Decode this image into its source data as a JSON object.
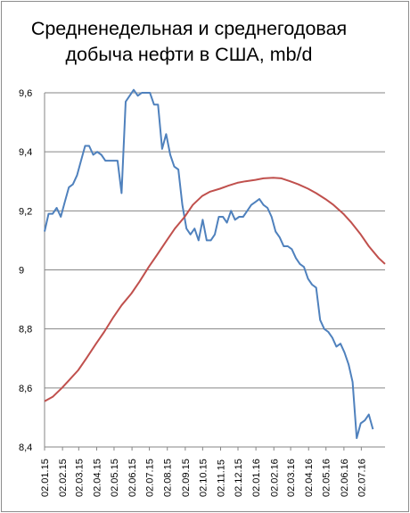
{
  "chart_data": {
    "type": "line",
    "title_lines": [
      "Средненедельная и среднегодовая",
      "добыча нефти в США, mb/d"
    ],
    "ylim": [
      8.4,
      9.6
    ],
    "y_ticks": [
      "8,4",
      "8,6",
      "8,8",
      "9",
      "9,2",
      "9,4",
      "9,6"
    ],
    "x_range": [
      "2015-01-02",
      "2016-08-12"
    ],
    "x_ticks": [
      "02.01.15",
      "02.02.15",
      "02.03.15",
      "02.04.15",
      "02.05.15",
      "02.06.15",
      "02.07.15",
      "02.08.15",
      "02.09.15",
      "02.10.15",
      "02.11.15",
      "02.12.15",
      "02.01.16",
      "02.02.16",
      "02.03.16",
      "02.04.16",
      "02.05.16",
      "02.06.16",
      "02.07.16"
    ],
    "grid": "horizontal",
    "legend": "none",
    "series": [
      {
        "color": "#4f81bd",
        "points": [
          [
            "2015-01-02",
            9.13
          ],
          [
            "2015-01-09",
            9.19
          ],
          [
            "2015-01-16",
            9.19
          ],
          [
            "2015-01-23",
            9.21
          ],
          [
            "2015-01-30",
            9.18
          ],
          [
            "2015-02-06",
            9.23
          ],
          [
            "2015-02-13",
            9.28
          ],
          [
            "2015-02-20",
            9.29
          ],
          [
            "2015-02-27",
            9.32
          ],
          [
            "2015-03-06",
            9.37
          ],
          [
            "2015-03-13",
            9.42
          ],
          [
            "2015-03-20",
            9.42
          ],
          [
            "2015-03-27",
            9.39
          ],
          [
            "2015-04-03",
            9.4
          ],
          [
            "2015-04-10",
            9.39
          ],
          [
            "2015-04-17",
            9.37
          ],
          [
            "2015-04-24",
            9.37
          ],
          [
            "2015-05-01",
            9.37
          ],
          [
            "2015-05-08",
            9.37
          ],
          [
            "2015-05-15",
            9.26
          ],
          [
            "2015-05-22",
            9.57
          ],
          [
            "2015-05-29",
            9.59
          ],
          [
            "2015-06-05",
            9.61
          ],
          [
            "2015-06-12",
            9.59
          ],
          [
            "2015-06-19",
            9.6
          ],
          [
            "2015-06-26",
            9.6
          ],
          [
            "2015-07-03",
            9.6
          ],
          [
            "2015-07-10",
            9.56
          ],
          [
            "2015-07-17",
            9.56
          ],
          [
            "2015-07-24",
            9.41
          ],
          [
            "2015-07-31",
            9.46
          ],
          [
            "2015-08-07",
            9.39
          ],
          [
            "2015-08-14",
            9.35
          ],
          [
            "2015-08-21",
            9.34
          ],
          [
            "2015-08-28",
            9.22
          ],
          [
            "2015-09-04",
            9.14
          ],
          [
            "2015-09-11",
            9.12
          ],
          [
            "2015-09-18",
            9.14
          ],
          [
            "2015-09-25",
            9.1
          ],
          [
            "2015-10-02",
            9.17
          ],
          [
            "2015-10-09",
            9.1
          ],
          [
            "2015-10-16",
            9.1
          ],
          [
            "2015-10-23",
            9.12
          ],
          [
            "2015-10-30",
            9.18
          ],
          [
            "2015-11-06",
            9.18
          ],
          [
            "2015-11-13",
            9.16
          ],
          [
            "2015-11-20",
            9.2
          ],
          [
            "2015-11-27",
            9.17
          ],
          [
            "2015-12-04",
            9.18
          ],
          [
            "2015-12-11",
            9.18
          ],
          [
            "2015-12-18",
            9.2
          ],
          [
            "2015-12-25",
            9.22
          ],
          [
            "2016-01-01",
            9.23
          ],
          [
            "2016-01-08",
            9.24
          ],
          [
            "2016-01-15",
            9.22
          ],
          [
            "2016-01-22",
            9.21
          ],
          [
            "2016-01-29",
            9.18
          ],
          [
            "2016-02-05",
            9.13
          ],
          [
            "2016-02-12",
            9.11
          ],
          [
            "2016-02-19",
            9.08
          ],
          [
            "2016-02-26",
            9.08
          ],
          [
            "2016-03-04",
            9.07
          ],
          [
            "2016-03-11",
            9.04
          ],
          [
            "2016-03-18",
            9.02
          ],
          [
            "2016-03-25",
            9.01
          ],
          [
            "2016-04-01",
            8.97
          ],
          [
            "2016-04-08",
            8.95
          ],
          [
            "2016-04-15",
            8.94
          ],
          [
            "2016-04-22",
            8.83
          ],
          [
            "2016-04-29",
            8.8
          ],
          [
            "2016-05-06",
            8.79
          ],
          [
            "2016-05-13",
            8.77
          ],
          [
            "2016-05-20",
            8.74
          ],
          [
            "2016-05-27",
            8.75
          ],
          [
            "2016-06-03",
            8.72
          ],
          [
            "2016-06-10",
            8.68
          ],
          [
            "2016-06-17",
            8.62
          ],
          [
            "2016-06-24",
            8.43
          ],
          [
            "2016-07-01",
            8.48
          ],
          [
            "2016-07-08",
            8.49
          ],
          [
            "2016-07-15",
            8.51
          ],
          [
            "2016-07-22",
            8.46
          ]
        ]
      },
      {
        "color": "#c0504d",
        "points": [
          [
            "2015-01-02",
            8.555
          ],
          [
            "2015-01-16",
            8.57
          ],
          [
            "2015-02-01",
            8.6
          ],
          [
            "2015-02-15",
            8.63
          ],
          [
            "2015-03-01",
            8.66
          ],
          [
            "2015-03-15",
            8.7
          ],
          [
            "2015-04-01",
            8.75
          ],
          [
            "2015-04-15",
            8.79
          ],
          [
            "2015-05-01",
            8.84
          ],
          [
            "2015-05-15",
            8.88
          ],
          [
            "2015-06-01",
            8.92
          ],
          [
            "2015-06-15",
            8.96
          ],
          [
            "2015-07-01",
            9.01
          ],
          [
            "2015-07-15",
            9.05
          ],
          [
            "2015-08-01",
            9.1
          ],
          [
            "2015-08-15",
            9.14
          ],
          [
            "2015-09-01",
            9.18
          ],
          [
            "2015-09-15",
            9.22
          ],
          [
            "2015-10-01",
            9.25
          ],
          [
            "2015-10-15",
            9.265
          ],
          [
            "2015-11-01",
            9.275
          ],
          [
            "2015-11-15",
            9.285
          ],
          [
            "2015-12-01",
            9.295
          ],
          [
            "2015-12-15",
            9.3
          ],
          [
            "2016-01-01",
            9.305
          ],
          [
            "2016-01-15",
            9.31
          ],
          [
            "2016-02-01",
            9.312
          ],
          [
            "2016-02-15",
            9.31
          ],
          [
            "2016-03-01",
            9.3
          ],
          [
            "2016-03-15",
            9.29
          ],
          [
            "2016-04-01",
            9.275
          ],
          [
            "2016-04-15",
            9.26
          ],
          [
            "2016-05-01",
            9.24
          ],
          [
            "2016-05-15",
            9.22
          ],
          [
            "2016-06-01",
            9.19
          ],
          [
            "2016-06-15",
            9.16
          ],
          [
            "2016-07-01",
            9.12
          ],
          [
            "2016-07-15",
            9.08
          ],
          [
            "2016-08-01",
            9.04
          ],
          [
            "2016-08-12",
            9.02
          ]
        ]
      }
    ]
  }
}
